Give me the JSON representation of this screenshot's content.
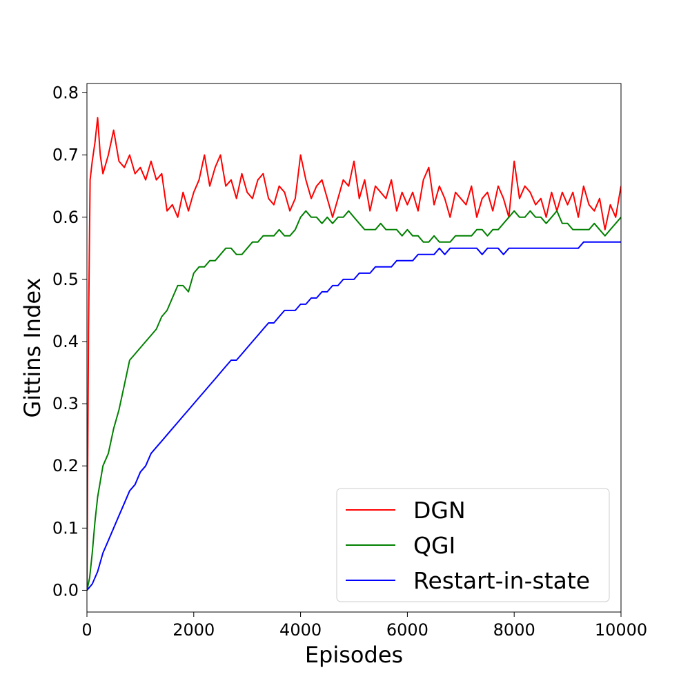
{
  "chart_data": {
    "type": "line",
    "xlabel": "Episodes",
    "ylabel": "Gittins Index",
    "xlim": [
      0,
      10000
    ],
    "ylim": [
      -0.035,
      0.815
    ],
    "xticks": [
      0,
      2000,
      4000,
      6000,
      8000,
      10000
    ],
    "xtick_labels": [
      "0",
      "2000",
      "4000",
      "6000",
      "8000",
      "10000"
    ],
    "yticks": [
      0.0,
      0.1,
      0.2,
      0.3,
      0.4,
      0.5,
      0.6,
      0.7,
      0.8
    ],
    "ytick_labels": [
      "0.0",
      "0.1",
      "0.2",
      "0.3",
      "0.4",
      "0.5",
      "0.6",
      "0.7",
      "0.8"
    ],
    "grid": false,
    "legend_position": "bottom-right",
    "series": [
      {
        "name": "DGN",
        "color": "#ff0000",
        "x": [
          0,
          30,
          60,
          100,
          150,
          200,
          250,
          300,
          400,
          500,
          600,
          700,
          800,
          900,
          1000,
          1100,
          1200,
          1300,
          1400,
          1500,
          1600,
          1700,
          1800,
          1900,
          2000,
          2100,
          2200,
          2300,
          2400,
          2500,
          2600,
          2700,
          2800,
          2900,
          3000,
          3100,
          3200,
          3300,
          3400,
          3500,
          3600,
          3700,
          3800,
          3900,
          4000,
          4100,
          4200,
          4300,
          4400,
          4500,
          4600,
          4700,
          4800,
          4900,
          5000,
          5100,
          5200,
          5300,
          5400,
          5500,
          5600,
          5700,
          5800,
          5900,
          6000,
          6100,
          6200,
          6300,
          6400,
          6500,
          6600,
          6700,
          6800,
          6900,
          7000,
          7100,
          7200,
          7300,
          7400,
          7500,
          7600,
          7700,
          7800,
          7900,
          8000,
          8100,
          8200,
          8300,
          8400,
          8500,
          8600,
          8700,
          8800,
          8900,
          9000,
          9100,
          9200,
          9300,
          9400,
          9500,
          9600,
          9700,
          9800,
          9900,
          10000
        ],
        "y": [
          0.0,
          0.42,
          0.66,
          0.69,
          0.72,
          0.76,
          0.7,
          0.67,
          0.7,
          0.74,
          0.69,
          0.68,
          0.7,
          0.67,
          0.68,
          0.66,
          0.69,
          0.66,
          0.67,
          0.61,
          0.62,
          0.6,
          0.64,
          0.61,
          0.64,
          0.66,
          0.7,
          0.65,
          0.68,
          0.7,
          0.65,
          0.66,
          0.63,
          0.67,
          0.64,
          0.63,
          0.66,
          0.67,
          0.63,
          0.62,
          0.65,
          0.64,
          0.61,
          0.63,
          0.7,
          0.66,
          0.63,
          0.65,
          0.66,
          0.63,
          0.6,
          0.63,
          0.66,
          0.65,
          0.69,
          0.63,
          0.66,
          0.61,
          0.65,
          0.64,
          0.63,
          0.66,
          0.61,
          0.64,
          0.62,
          0.64,
          0.61,
          0.66,
          0.68,
          0.62,
          0.65,
          0.63,
          0.6,
          0.64,
          0.63,
          0.62,
          0.65,
          0.6,
          0.63,
          0.64,
          0.61,
          0.65,
          0.63,
          0.6,
          0.69,
          0.63,
          0.65,
          0.64,
          0.62,
          0.63,
          0.6,
          0.64,
          0.61,
          0.64,
          0.62,
          0.64,
          0.6,
          0.65,
          0.62,
          0.61,
          0.63,
          0.58,
          0.62,
          0.6,
          0.65
        ]
      },
      {
        "name": "QGI",
        "color": "#008000",
        "x": [
          0,
          50,
          100,
          150,
          200,
          300,
          400,
          500,
          600,
          700,
          800,
          900,
          1000,
          1100,
          1200,
          1300,
          1400,
          1500,
          1600,
          1700,
          1800,
          1900,
          2000,
          2100,
          2200,
          2300,
          2400,
          2500,
          2600,
          2700,
          2800,
          2900,
          3000,
          3100,
          3200,
          3300,
          3400,
          3500,
          3600,
          3700,
          3800,
          3900,
          4000,
          4100,
          4200,
          4300,
          4400,
          4500,
          4600,
          4700,
          4800,
          4900,
          5000,
          5100,
          5200,
          5300,
          5400,
          5500,
          5600,
          5700,
          5800,
          5900,
          6000,
          6100,
          6200,
          6300,
          6400,
          6500,
          6600,
          6700,
          6800,
          6900,
          7000,
          7100,
          7200,
          7300,
          7400,
          7500,
          7600,
          7700,
          7800,
          7900,
          8000,
          8100,
          8200,
          8300,
          8400,
          8500,
          8600,
          8700,
          8800,
          8900,
          9000,
          9100,
          9200,
          9300,
          9400,
          9500,
          9600,
          9700,
          9800,
          9900,
          10000
        ],
        "y": [
          0.0,
          0.02,
          0.06,
          0.11,
          0.15,
          0.2,
          0.22,
          0.26,
          0.29,
          0.33,
          0.37,
          0.38,
          0.39,
          0.4,
          0.41,
          0.42,
          0.44,
          0.45,
          0.47,
          0.49,
          0.49,
          0.48,
          0.51,
          0.52,
          0.52,
          0.53,
          0.53,
          0.54,
          0.55,
          0.55,
          0.54,
          0.54,
          0.55,
          0.56,
          0.56,
          0.57,
          0.57,
          0.57,
          0.58,
          0.57,
          0.57,
          0.58,
          0.6,
          0.61,
          0.6,
          0.6,
          0.59,
          0.6,
          0.59,
          0.6,
          0.6,
          0.61,
          0.6,
          0.59,
          0.58,
          0.58,
          0.58,
          0.59,
          0.58,
          0.58,
          0.58,
          0.57,
          0.58,
          0.57,
          0.57,
          0.56,
          0.56,
          0.57,
          0.56,
          0.56,
          0.56,
          0.57,
          0.57,
          0.57,
          0.57,
          0.58,
          0.58,
          0.57,
          0.58,
          0.58,
          0.59,
          0.6,
          0.61,
          0.6,
          0.6,
          0.61,
          0.6,
          0.6,
          0.59,
          0.6,
          0.61,
          0.59,
          0.59,
          0.58,
          0.58,
          0.58,
          0.58,
          0.59,
          0.58,
          0.57,
          0.58,
          0.59,
          0.6
        ]
      },
      {
        "name": "Restart-in-state",
        "color": "#0000ff",
        "x": [
          0,
          100,
          200,
          300,
          400,
          500,
          600,
          700,
          800,
          900,
          1000,
          1100,
          1200,
          1300,
          1400,
          1500,
          1600,
          1700,
          1800,
          1900,
          2000,
          2100,
          2200,
          2300,
          2400,
          2500,
          2600,
          2700,
          2800,
          2900,
          3000,
          3100,
          3200,
          3300,
          3400,
          3500,
          3600,
          3700,
          3800,
          3900,
          4000,
          4100,
          4200,
          4300,
          4400,
          4500,
          4600,
          4700,
          4800,
          4900,
          5000,
          5100,
          5200,
          5300,
          5400,
          5500,
          5600,
          5700,
          5800,
          5900,
          6000,
          6100,
          6200,
          6300,
          6400,
          6500,
          6600,
          6700,
          6800,
          6900,
          7000,
          7100,
          7200,
          7300,
          7400,
          7500,
          7600,
          7700,
          7800,
          7900,
          8000,
          8100,
          8200,
          8300,
          8400,
          8500,
          8600,
          8700,
          8800,
          8900,
          9000,
          9100,
          9200,
          9300,
          9400,
          9500,
          9600,
          9700,
          9800,
          9900,
          10000
        ],
        "y": [
          0.0,
          0.01,
          0.03,
          0.06,
          0.08,
          0.1,
          0.12,
          0.14,
          0.16,
          0.17,
          0.19,
          0.2,
          0.22,
          0.23,
          0.24,
          0.25,
          0.26,
          0.27,
          0.28,
          0.29,
          0.3,
          0.31,
          0.32,
          0.33,
          0.34,
          0.35,
          0.36,
          0.37,
          0.37,
          0.38,
          0.39,
          0.4,
          0.41,
          0.42,
          0.43,
          0.43,
          0.44,
          0.45,
          0.45,
          0.45,
          0.46,
          0.46,
          0.47,
          0.47,
          0.48,
          0.48,
          0.49,
          0.49,
          0.5,
          0.5,
          0.5,
          0.51,
          0.51,
          0.51,
          0.52,
          0.52,
          0.52,
          0.52,
          0.53,
          0.53,
          0.53,
          0.53,
          0.54,
          0.54,
          0.54,
          0.54,
          0.55,
          0.54,
          0.55,
          0.55,
          0.55,
          0.55,
          0.55,
          0.55,
          0.54,
          0.55,
          0.55,
          0.55,
          0.54,
          0.55,
          0.55,
          0.55,
          0.55,
          0.55,
          0.55,
          0.55,
          0.55,
          0.55,
          0.55,
          0.55,
          0.55,
          0.55,
          0.55,
          0.56,
          0.56,
          0.56,
          0.56,
          0.56,
          0.56,
          0.56,
          0.56
        ]
      }
    ]
  }
}
